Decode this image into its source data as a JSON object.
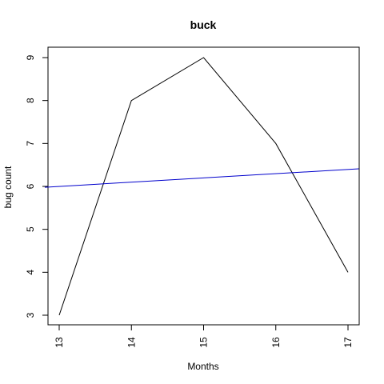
{
  "chart_data": {
    "type": "line",
    "title": "buck",
    "xlabel": "Months",
    "ylabel": "bug count",
    "x": [
      13,
      14,
      15,
      16,
      17
    ],
    "xlim": [
      13,
      17
    ],
    "ylim": [
      3,
      9
    ],
    "x_ticks": [
      13,
      14,
      15,
      16,
      17
    ],
    "y_ticks": [
      3,
      4,
      5,
      6,
      7,
      8,
      9
    ],
    "grid": false,
    "legend": "none",
    "series": [
      {
        "values": [
          3,
          8,
          9,
          7,
          4
        ],
        "color": "#000000"
      }
    ],
    "trend_line": {
      "type": "linear-fit",
      "color": "#0000cc",
      "start": [
        12.8,
        5.98
      ],
      "end": [
        17.15,
        6.41
      ]
    }
  }
}
